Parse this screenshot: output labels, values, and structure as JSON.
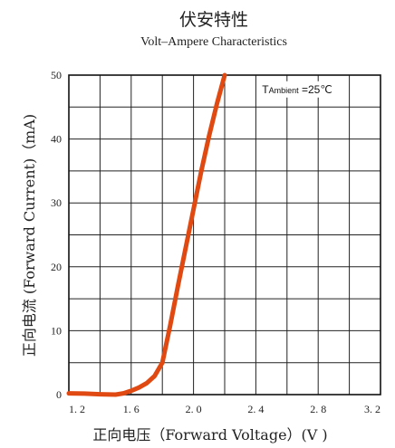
{
  "chart_data": {
    "type": "line",
    "title": "伏安特性",
    "subtitle": "Volt–Ampere Characteristics",
    "xlabel": "正向电压（Forward  Voltage）(V )",
    "ylabel": "正向电流 (Forward  Current)（mA)",
    "xlim": [
      1.2,
      3.2
    ],
    "ylim": [
      0,
      50
    ],
    "x_ticks": [
      {
        "value": 1.2,
        "label": "1. 2"
      },
      {
        "value": 1.6,
        "label": "1. 6"
      },
      {
        "value": 2.0,
        "label": "2. 0"
      },
      {
        "value": 2.4,
        "label": "2. 4"
      },
      {
        "value": 2.8,
        "label": "2. 8"
      },
      {
        "value": 3.2,
        "label": "3. 2"
      }
    ],
    "y_ticks": [
      {
        "value": 0,
        "label": "0"
      },
      {
        "value": 10,
        "label": "10"
      },
      {
        "value": 20,
        "label": "20"
      },
      {
        "value": 30,
        "label": "30"
      },
      {
        "value": 40,
        "label": "40"
      },
      {
        "value": 50,
        "label": "50"
      }
    ],
    "grid": true,
    "grid_x_step": 0.2,
    "grid_y_step": 5,
    "annotation": {
      "prefix": "T",
      "sub": "Ambient",
      "suffix": " =25℃"
    },
    "line_color": "#e04a12",
    "series": [
      {
        "x": [
          1.2,
          1.3,
          1.4,
          1.5,
          1.55,
          1.6,
          1.65,
          1.7,
          1.75,
          1.8,
          1.85,
          1.9,
          1.95,
          2.0,
          2.05,
          2.1,
          2.15,
          2.2
        ],
        "y": [
          0.2,
          0.15,
          0.05,
          0.0,
          0.2,
          0.6,
          1.1,
          1.8,
          2.9,
          5.0,
          10.8,
          17.0,
          23.0,
          29.0,
          35.0,
          40.5,
          45.5,
          50.0
        ]
      }
    ]
  }
}
